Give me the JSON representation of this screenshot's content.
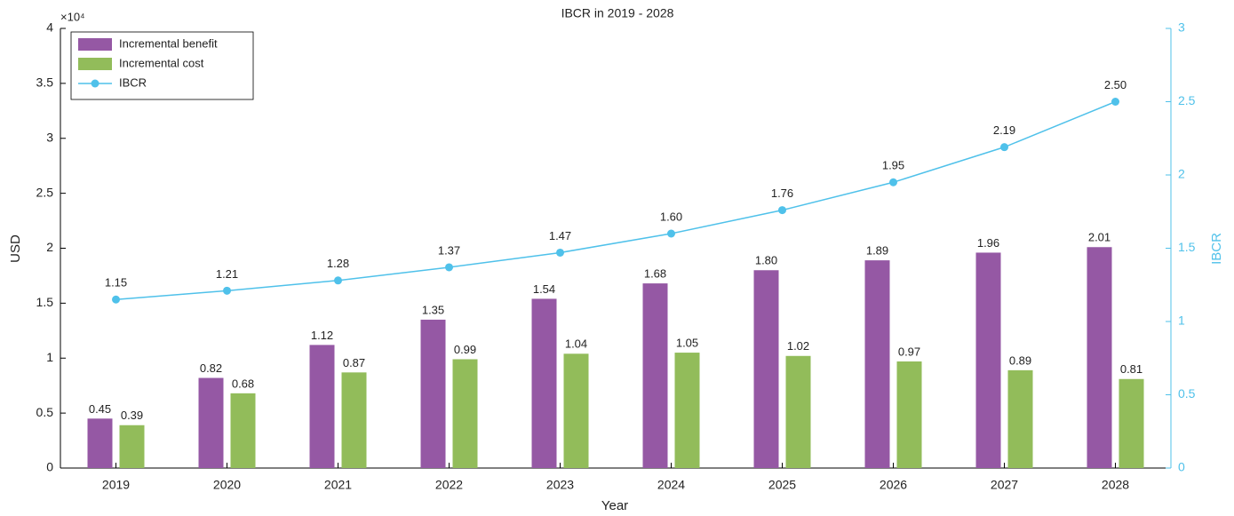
{
  "chart_data": {
    "type": "bar_line",
    "title": "IBCR in 2019 - 2028",
    "x_label": "Year",
    "y_label": "USD",
    "y2_label": "IBCR",
    "y_exponent_label": "×10⁴",
    "categories": [
      "2019",
      "2020",
      "2021",
      "2022",
      "2023",
      "2024",
      "2025",
      "2026",
      "2027",
      "2028"
    ],
    "series": [
      {
        "name": "Incremental benefit",
        "color": "#9558a4",
        "kind": "bar",
        "values": [
          0.45,
          0.82,
          1.12,
          1.35,
          1.54,
          1.68,
          1.8,
          1.89,
          1.96,
          2.01
        ],
        "value_labels": [
          "0.45",
          "0.82",
          "1.12",
          "1.35",
          "1.54",
          "1.68",
          "1.80",
          "1.89",
          "1.96",
          "2.01"
        ]
      },
      {
        "name": "Incremental cost",
        "color": "#92bc5a",
        "kind": "bar",
        "values": [
          0.39,
          0.68,
          0.87,
          0.99,
          1.04,
          1.05,
          1.02,
          0.97,
          0.89,
          0.81
        ],
        "value_labels": [
          "0.39",
          "0.68",
          "0.87",
          "0.99",
          "1.04",
          "1.05",
          "1.02",
          "0.97",
          "0.89",
          "0.81"
        ]
      },
      {
        "name": "IBCR",
        "color": "#4fc1ea",
        "kind": "line",
        "axis": "y2",
        "values": [
          1.15,
          1.21,
          1.28,
          1.37,
          1.47,
          1.6,
          1.76,
          1.95,
          2.19,
          2.5
        ],
        "value_labels": [
          "1.15",
          "1.21",
          "1.28",
          "1.37",
          "1.47",
          "1.60",
          "1.76",
          "1.95",
          "2.19",
          "2.50"
        ]
      }
    ],
    "ylim": [
      0,
      4
    ],
    "yticks": [
      0,
      0.5,
      1,
      1.5,
      2,
      2.5,
      3,
      3.5,
      4
    ],
    "y2lim": [
      0,
      3
    ],
    "y2ticks": [
      0,
      0.5,
      1,
      1.5,
      2,
      2.5,
      3
    ],
    "legend": "upper left",
    "grid": false
  }
}
